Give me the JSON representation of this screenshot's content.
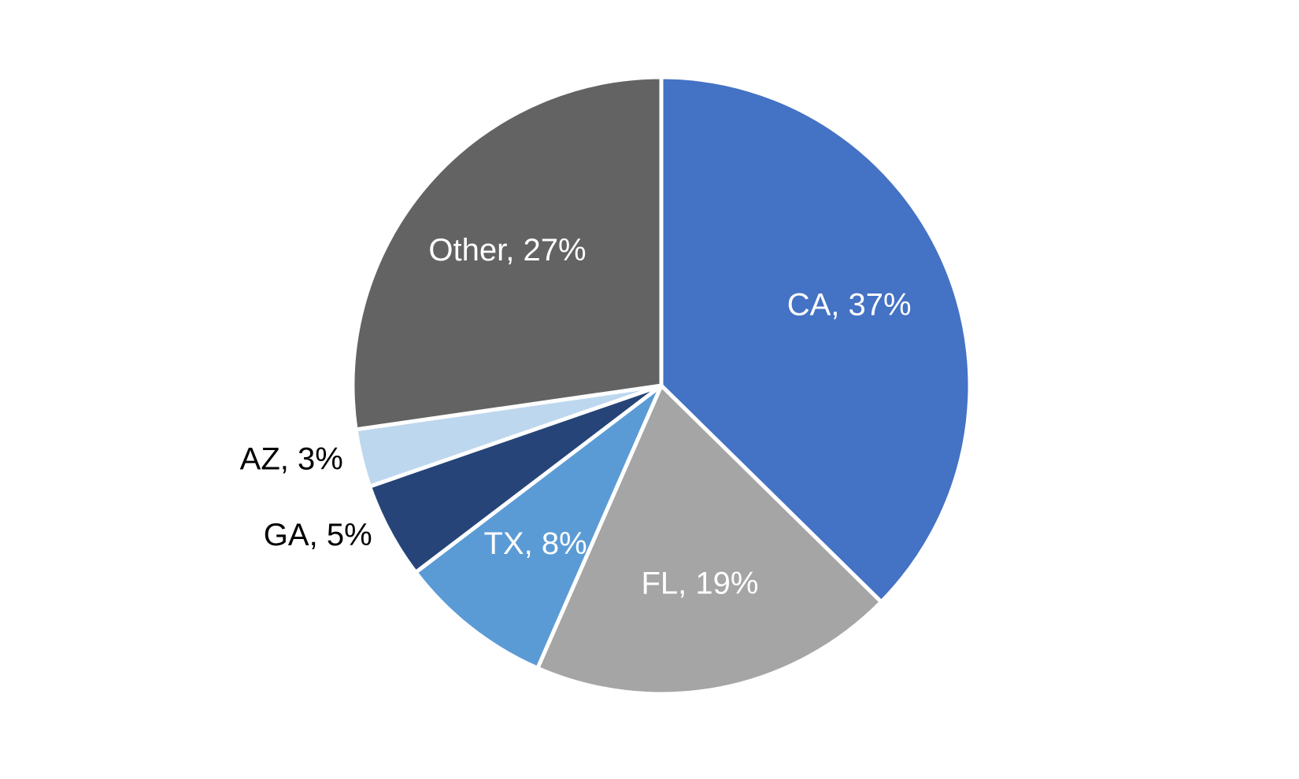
{
  "chart_data": {
    "type": "pie",
    "values": [
      37,
      19,
      8,
      5,
      3,
      27
    ],
    "value_labels": [
      "CA, 37%",
      "FL, 19%",
      "TX, 8%",
      "GA, 5%",
      "AZ, 3%",
      "Other, 27%"
    ],
    "colors": [
      "#4472c4",
      "#a5a5a5",
      "#5b9bd5",
      "#264478",
      "#bdd7ee",
      "#636363"
    ]
  }
}
